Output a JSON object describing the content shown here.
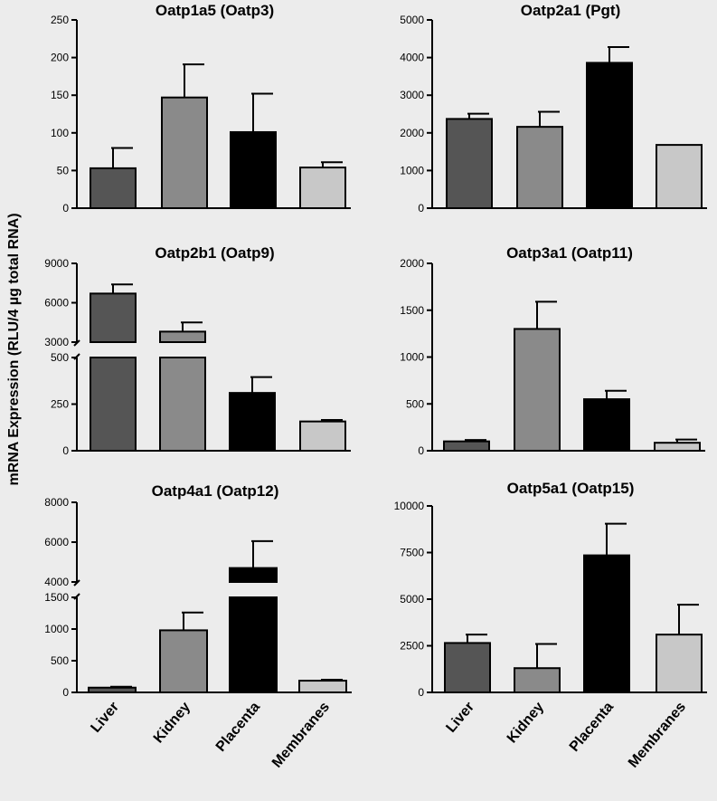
{
  "y_axis_label": "mRNA Expression  (RLU/4 µg total RNA)",
  "colors": {
    "background": "#ececec",
    "Liver": "#555555",
    "Kidney": "#8a8a8a",
    "Placenta": "#000000",
    "Membranes": "#c8c8c8"
  },
  "chart_data": [
    {
      "type": "bar",
      "title": "Oatp1a5 (Oatp3)",
      "categories": [
        "Liver",
        "Kidney",
        "Placenta",
        "Membranes"
      ],
      "values": [
        53,
        147,
        101,
        54
      ],
      "errors": [
        27,
        44,
        51,
        7
      ],
      "yticks": [
        0,
        50,
        100,
        150,
        200,
        250
      ],
      "ylim": [
        0,
        250
      ],
      "show_category_labels": false
    },
    {
      "type": "bar",
      "title": "Oatp2a1 (Pgt)",
      "categories": [
        "Liver",
        "Kidney",
        "Placenta",
        "Membranes"
      ],
      "values": [
        2370,
        2160,
        3860,
        1680
      ],
      "errors": [
        140,
        400,
        420,
        0
      ],
      "yticks": [
        0,
        1000,
        2000,
        3000,
        4000,
        5000
      ],
      "ylim": [
        0,
        5000
      ],
      "show_category_labels": false
    },
    {
      "type": "bar",
      "title": "Oatp2b1 (Oatp9)",
      "categories": [
        "Liver",
        "Kidney",
        "Placenta",
        "Membranes"
      ],
      "values": [
        6700,
        3800,
        310,
        157
      ],
      "errors": [
        700,
        700,
        85,
        8
      ],
      "broken_axis": {
        "lower_range": [
          0,
          500
        ],
        "lower_ticks": [
          0,
          250,
          500
        ],
        "upper_range": [
          3000,
          9000
        ],
        "upper_ticks": [
          3000,
          6000,
          9000
        ]
      },
      "show_category_labels": false
    },
    {
      "type": "bar",
      "title": "Oatp3a1 (Oatp11)",
      "categories": [
        "Liver",
        "Kidney",
        "Placenta",
        "Membranes"
      ],
      "values": [
        100,
        1300,
        550,
        85
      ],
      "errors": [
        15,
        290,
        90,
        35
      ],
      "yticks": [
        0,
        500,
        1000,
        1500,
        2000
      ],
      "ylim": [
        0,
        2000
      ],
      "show_category_labels": false
    },
    {
      "type": "bar",
      "title": "Oatp4a1 (Oatp12)",
      "categories": [
        "Liver",
        "Kidney",
        "Placenta",
        "Membranes"
      ],
      "values": [
        75,
        980,
        4700,
        185
      ],
      "errors": [
        15,
        280,
        1350,
        15
      ],
      "broken_axis": {
        "lower_range": [
          0,
          1500
        ],
        "lower_ticks": [
          0,
          500,
          1000,
          1500
        ],
        "upper_range": [
          4000,
          8000
        ],
        "upper_ticks": [
          4000,
          6000,
          8000
        ]
      },
      "show_category_labels": true
    },
    {
      "type": "bar",
      "title": "Oatp5a1 (Oatp15)",
      "categories": [
        "Liver",
        "Kidney",
        "Placenta",
        "Membranes"
      ],
      "values": [
        2650,
        1300,
        7350,
        3100
      ],
      "errors": [
        450,
        1300,
        1700,
        1600
      ],
      "yticks": [
        0,
        2500,
        5000,
        7500,
        10000
      ],
      "ylim": [
        0,
        10000
      ],
      "show_category_labels": true
    }
  ]
}
